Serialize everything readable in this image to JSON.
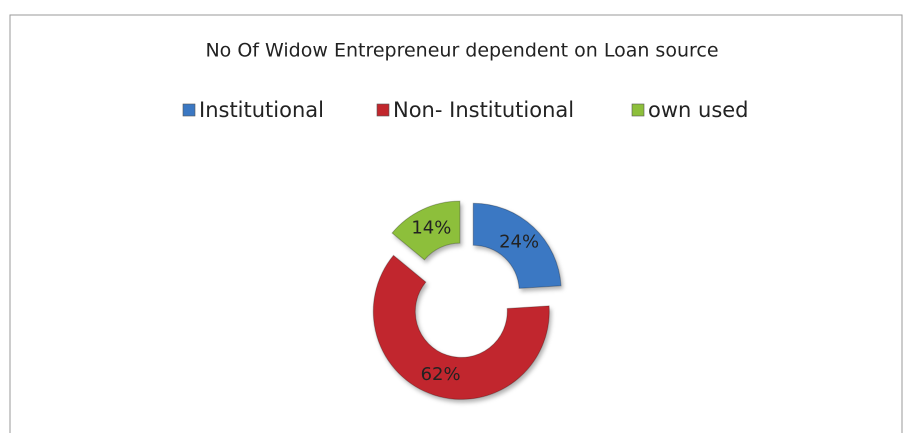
{
  "chart_data": {
    "type": "doughnut",
    "title": "No Of Widow Entrepreneur dependent on Loan source",
    "categories": [
      "Institutional",
      "Non- Institutional",
      "own used"
    ],
    "values": [
      24,
      62,
      14
    ],
    "value_labels": [
      "24%",
      "62%",
      "14%"
    ],
    "colors": [
      "#3b78c3",
      "#c1272d",
      "#8dbf3b"
    ],
    "legend": "top"
  }
}
